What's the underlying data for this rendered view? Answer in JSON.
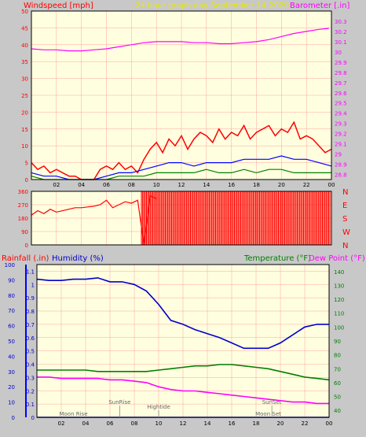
{
  "header": {
    "windspeed_label": "Windspeed [mph]",
    "date_label": "24 hour graph day   September 14 2020",
    "barometer_label": "Barometer [.in]"
  },
  "lower_header": {
    "rainfall_label": "Rainfall (.in)",
    "humidity_label": "Humidity (%)",
    "temperature_label": "Temperature (°F)",
    "dewpoint_label": "Dew Point (°F)"
  },
  "colors": {
    "panel_bg": "#ffffe0",
    "frame_bg": "#c8c8c8",
    "wind": "#ff0000",
    "gust": "#0000ff",
    "wind_green": "#008000",
    "barometer": "#ff00ff",
    "temperature": "#008000",
    "dewpoint": "#ff00ff",
    "humidity": "#0000cc",
    "rain": "#0000ff",
    "grid": "#ffa0a0"
  },
  "chart_data": [
    {
      "type": "line",
      "id": "wind-barometer",
      "x_ticks": [
        "02",
        "04",
        "06",
        "08",
        "10",
        "12",
        "14",
        "16",
        "18",
        "20",
        "22",
        "00"
      ],
      "xlim": [
        0,
        24
      ],
      "ylim_left": [
        0,
        50
      ],
      "y_ticks_left": [
        "0",
        "5",
        "10",
        "15",
        "20",
        "25",
        "30",
        "35",
        "40",
        "45",
        "50"
      ],
      "ylim_right": [
        28.75,
        30.4
      ],
      "y_ticks_right": [
        "28.8",
        "28.9",
        "29",
        "29.1",
        "29.2",
        "29.3",
        "29.4",
        "29.5",
        "29.6",
        "29.7",
        "29.8",
        "29.9",
        "30",
        "30.1",
        "30.2",
        "30.3"
      ],
      "series": [
        {
          "role": "barometer",
          "axis": "right",
          "x": [
            0,
            1,
            2,
            3,
            4,
            5,
            6,
            7,
            8,
            9,
            10,
            11,
            12,
            13,
            14,
            15,
            16,
            17,
            18,
            19,
            20,
            21,
            22,
            23,
            23.8
          ],
          "y": [
            30.03,
            30.02,
            30.02,
            30.01,
            30.01,
            30.02,
            30.03,
            30.05,
            30.07,
            30.09,
            30.1,
            30.1,
            30.1,
            30.09,
            30.09,
            30.08,
            30.08,
            30.09,
            30.1,
            30.12,
            30.15,
            30.18,
            30.2,
            30.22,
            30.23
          ]
        },
        {
          "role": "wind",
          "axis": "left",
          "x": [
            0,
            0.5,
            1,
            1.5,
            2,
            2.5,
            3,
            3.5,
            4,
            4.5,
            5,
            5.5,
            6,
            6.5,
            7,
            7.5,
            8,
            8.5,
            9,
            9.5,
            10,
            10.5,
            11,
            11.5,
            12,
            12.5,
            13,
            13.5,
            14,
            14.5,
            15,
            15.5,
            16,
            16.5,
            17,
            17.5,
            18,
            18.5,
            19,
            19.5,
            20,
            20.5,
            21,
            21.5,
            22,
            22.5,
            23,
            23.5,
            24
          ],
          "y": [
            5,
            3,
            4,
            2,
            3,
            2,
            1,
            1,
            0,
            0,
            0,
            3,
            4,
            3,
            5,
            3,
            4,
            2,
            6,
            9,
            11,
            8,
            12,
            10,
            13,
            9,
            12,
            14,
            13,
            11,
            15,
            12,
            14,
            13,
            16,
            12,
            14,
            15,
            16,
            13,
            15,
            14,
            17,
            12,
            13,
            12,
            10,
            8,
            9
          ]
        },
        {
          "role": "gust",
          "axis": "left",
          "x": [
            0,
            1,
            2,
            3,
            4,
            5,
            6,
            7,
            8,
            9,
            10,
            11,
            12,
            13,
            14,
            15,
            16,
            17,
            18,
            19,
            20,
            21,
            22,
            23,
            24
          ],
          "y": [
            2,
            1,
            1,
            0,
            0,
            0,
            1,
            2,
            2,
            3,
            4,
            5,
            5,
            4,
            5,
            5,
            5,
            6,
            6,
            6,
            7,
            6,
            6,
            5,
            4
          ]
        },
        {
          "role": "wind_green",
          "axis": "left",
          "x": [
            0,
            1,
            2,
            3,
            4,
            5,
            6,
            7,
            8,
            9,
            10,
            11,
            12,
            13,
            14,
            15,
            16,
            17,
            18,
            19,
            20,
            21,
            22,
            23,
            24
          ],
          "y": [
            1,
            0,
            0,
            0,
            0,
            0,
            0,
            1,
            1,
            1,
            2,
            2,
            2,
            2,
            3,
            2,
            2,
            3,
            2,
            3,
            3,
            2,
            2,
            2,
            2
          ]
        }
      ]
    },
    {
      "type": "scatter",
      "id": "wind-direction",
      "x_ticks": [
        "02",
        "04",
        "06",
        "08",
        "10",
        "12",
        "14",
        "16",
        "18",
        "20",
        "22",
        "00"
      ],
      "xlim": [
        0,
        24
      ],
      "ylim": [
        0,
        360
      ],
      "y_ticks": [
        "0",
        "90",
        "180",
        "270",
        "360"
      ],
      "y_ticks_labels": [
        "0",
        "90",
        "180",
        "270",
        "360"
      ],
      "direction_labels": [
        "N",
        "W",
        "S",
        "E",
        "N"
      ],
      "x": [
        0,
        0.5,
        1,
        1.5,
        2,
        2.5,
        3,
        3.5,
        4,
        4.5,
        5,
        5.5,
        6,
        6.5,
        7,
        7.5,
        8,
        8.5,
        9,
        9.5,
        10
      ],
      "y": [
        200,
        230,
        210,
        240,
        220,
        230,
        240,
        250,
        250,
        255,
        260,
        270,
        300,
        250,
        270,
        290,
        280,
        300,
        0,
        330,
        310
      ]
    },
    {
      "type": "line",
      "id": "humidity-temperature",
      "x_ticks": [
        "02",
        "04",
        "06",
        "08",
        "10",
        "12",
        "14",
        "16",
        "18",
        "20",
        "22",
        "00"
      ],
      "xlim": [
        0,
        24
      ],
      "ylim_rain": [
        0,
        1.0
      ],
      "y_ticks_rain": [
        "0",
        "10",
        "20",
        "30",
        "40",
        "50",
        "60",
        "70",
        "80",
        "90",
        "100"
      ],
      "ylim_humidity": [
        0,
        1.15
      ],
      "y_ticks_humidity": [
        "0",
        "0.1",
        "0.2",
        "0.3",
        "0.4",
        "0.5",
        "0.6",
        "0.7",
        "0.8",
        "0.9",
        "1",
        "1.1"
      ],
      "ylim_temp": [
        35,
        145
      ],
      "y_ticks_temp": [
        "40",
        "50",
        "60",
        "70",
        "80",
        "90",
        "100",
        "110",
        "120",
        "130",
        "140"
      ],
      "annotations": [
        {
          "label": "Moon Rise",
          "x": 3
        },
        {
          "label": "SunRise",
          "x": 6.8
        },
        {
          "label": "Hightide",
          "x": 10
        },
        {
          "label": "SunSet",
          "x": 19.3
        },
        {
          "label": "Moon Set",
          "x": 19
        }
      ],
      "series": [
        {
          "role": "humidity",
          "axis": "humidity",
          "x": [
            0,
            1,
            2,
            3,
            4,
            5,
            6,
            7,
            8,
            9,
            10,
            11,
            12,
            13,
            14,
            15,
            16,
            17,
            18,
            19,
            20,
            21,
            22,
            23,
            24
          ],
          "y": [
            1.04,
            1.03,
            1.03,
            1.04,
            1.04,
            1.05,
            1.02,
            1.02,
            1.0,
            0.95,
            0.85,
            0.73,
            0.7,
            0.66,
            0.63,
            0.6,
            0.56,
            0.52,
            0.52,
            0.52,
            0.56,
            0.62,
            0.68,
            0.7,
            0.7
          ]
        },
        {
          "role": "temperature",
          "axis": "temp",
          "x": [
            0,
            1,
            2,
            3,
            4,
            5,
            6,
            7,
            8,
            9,
            10,
            11,
            12,
            13,
            14,
            15,
            16,
            17,
            18,
            19,
            20,
            21,
            22,
            23,
            24
          ],
          "y": [
            69,
            69,
            69,
            69,
            69,
            68,
            68,
            68,
            68,
            68,
            69,
            70,
            71,
            72,
            72,
            73,
            73,
            72,
            71,
            70,
            68,
            66,
            64,
            63,
            62
          ]
        },
        {
          "role": "dewpoint",
          "axis": "temp",
          "x": [
            0,
            1,
            2,
            3,
            4,
            5,
            6,
            7,
            8,
            9,
            10,
            11,
            12,
            13,
            14,
            15,
            16,
            17,
            18,
            19,
            20,
            21,
            22,
            23,
            24
          ],
          "y": [
            64,
            64,
            63,
            63,
            63,
            63,
            62,
            62,
            61,
            60,
            57,
            55,
            54,
            54,
            53,
            52,
            51,
            50,
            49,
            48,
            47,
            46,
            46,
            45,
            45
          ]
        },
        {
          "role": "rain",
          "axis": "rain",
          "x": [
            0,
            24
          ],
          "y": [
            0,
            0
          ]
        }
      ]
    }
  ]
}
